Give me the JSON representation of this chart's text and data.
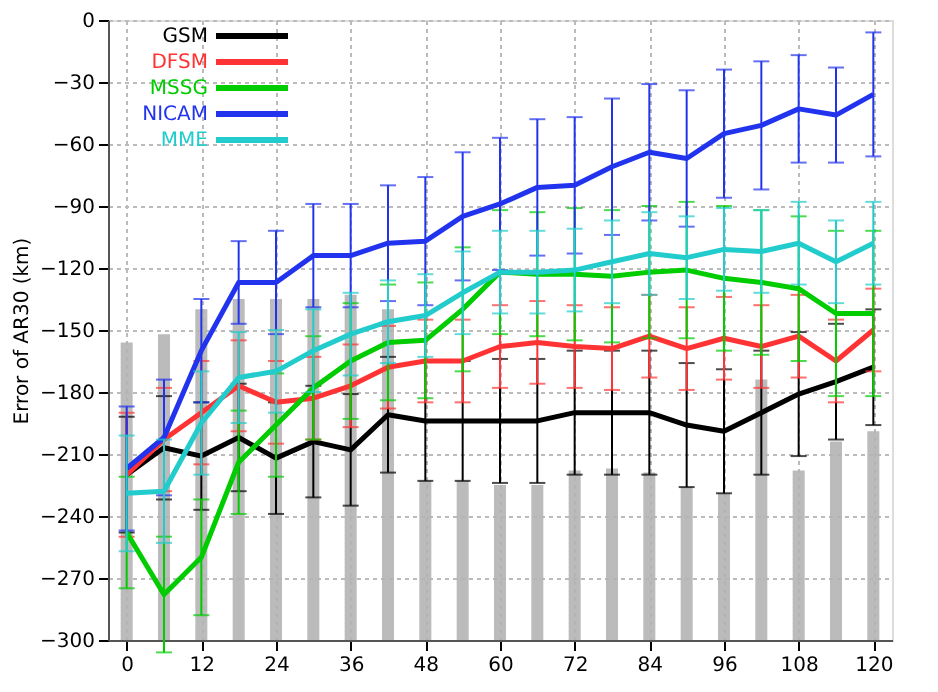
{
  "chart_data": {
    "type": "line",
    "ylabel": "Error of AR30 (km)",
    "x": [
      0,
      6,
      12,
      18,
      24,
      30,
      36,
      42,
      48,
      54,
      60,
      66,
      72,
      78,
      84,
      90,
      96,
      102,
      108,
      114,
      120
    ],
    "xlim": [
      -3,
      123
    ],
    "xticks": [
      0,
      12,
      24,
      36,
      48,
      60,
      72,
      84,
      96,
      108,
      120
    ],
    "ylim": [
      -300,
      0
    ],
    "yticks": [
      -300,
      -270,
      -240,
      -210,
      -180,
      -150,
      -120,
      -90,
      -60,
      -30,
      0
    ],
    "grid": true,
    "legend": "top left",
    "line_style": "solid",
    "marker": "none",
    "series": [
      {
        "type": "bar",
        "color": "#b4b4b4",
        "base": [
          -300,
          -300,
          -300,
          -300,
          -300,
          -300,
          -300,
          -300,
          -300,
          -300,
          -300,
          -300,
          -300,
          -300,
          -300,
          -300,
          -300,
          -300,
          -300,
          -300,
          -300
        ],
        "values": [
          144,
          148,
          160,
          165,
          165,
          165,
          167,
          160,
          77,
          77,
          75,
          75,
          82,
          83,
          81,
          74,
          71,
          126,
          82,
          96,
          101
        ]
      },
      {
        "name": "GSM",
        "color": "#000000",
        "values": [
          -220,
          -207,
          -211,
          -202,
          -212,
          -204,
          -208,
          -191,
          -194,
          -194,
          -194,
          -194,
          -190,
          -190,
          -190,
          -196,
          -199,
          -190,
          -181,
          -175,
          -168
        ],
        "errors": [
          28,
          25,
          26,
          26,
          27,
          27,
          27,
          28,
          29,
          29,
          30,
          30,
          30,
          30,
          30,
          30,
          30,
          30,
          30,
          28,
          28
        ]
      },
      {
        "name": "DFSM",
        "color": "#ff3333",
        "values": [
          -220,
          -203,
          -190,
          -177,
          -185,
          -183,
          -177,
          -168,
          -165,
          -165,
          -158,
          -156,
          -158,
          -159,
          -153,
          -159,
          -154,
          -158,
          -153,
          -165,
          -150
        ],
        "errors": [
          30,
          25,
          25,
          22,
          20,
          20,
          20,
          20,
          20,
          20,
          20,
          20,
          20,
          20,
          20,
          20,
          20,
          20,
          20,
          20,
          20
        ]
      },
      {
        "name": "MSSG",
        "color": "#00cc00",
        "values": [
          -248,
          -278,
          -260,
          -214,
          -196,
          -178,
          -165,
          -156,
          -155,
          -140,
          -122,
          -123,
          -123,
          -124,
          -122,
          -121,
          -125,
          -127,
          -130,
          -142,
          -142
        ],
        "errors": [
          27,
          28,
          28,
          25,
          25,
          25,
          28,
          28,
          28,
          30,
          30,
          30,
          32,
          32,
          32,
          33,
          35,
          35,
          35,
          40,
          40
        ]
      },
      {
        "name": "NICAM",
        "color": "#2233ee",
        "values": [
          -217,
          -202,
          -160,
          -127,
          -127,
          -114,
          -114,
          -108,
          -107,
          -95,
          -89,
          -81,
          -80,
          -71,
          -64,
          -67,
          -55,
          -51,
          -43,
          -46,
          -36
        ],
        "errors": [
          30,
          28,
          25,
          20,
          25,
          25,
          25,
          28,
          31,
          31,
          32,
          33,
          33,
          33,
          33,
          33,
          31,
          31,
          26,
          23,
          30
        ]
      },
      {
        "name": "MME",
        "color": "#22cccc",
        "values": [
          -229,
          -228,
          -195,
          -173,
          -170,
          -160,
          -152,
          -146,
          -143,
          -132,
          -122,
          -122,
          -121,
          -117,
          -113,
          -115,
          -111,
          -112,
          -108,
          -117,
          -108
        ],
        "errors": [
          28,
          25,
          25,
          22,
          20,
          20,
          20,
          20,
          20,
          20,
          20,
          20,
          20,
          20,
          20,
          20,
          20,
          20,
          20,
          20,
          20
        ]
      }
    ]
  }
}
